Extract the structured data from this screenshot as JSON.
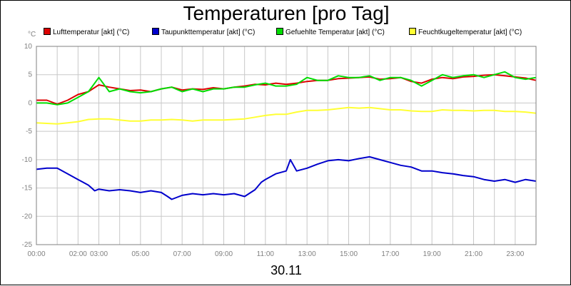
{
  "chart_data": {
    "type": "line",
    "title": "Temperaturen [pro Tag]",
    "y_unit": "°C",
    "date_label": "30.11",
    "xlim": [
      0,
      24
    ],
    "ylim": [
      -25,
      10
    ],
    "y_ticks": [
      10,
      5,
      0,
      -5,
      -10,
      -15,
      -20,
      -25
    ],
    "x_tick_labels": [
      {
        "hour": 0,
        "label": "00:00"
      },
      {
        "hour": 2,
        "label": "02:00"
      },
      {
        "hour": 3,
        "label": "03:00"
      },
      {
        "hour": 5,
        "label": "05:00"
      },
      {
        "hour": 7,
        "label": "07:00"
      },
      {
        "hour": 9,
        "label": "09:00"
      },
      {
        "hour": 11,
        "label": "11:00"
      },
      {
        "hour": 13,
        "label": "13:00"
      },
      {
        "hour": 15,
        "label": "15:00"
      },
      {
        "hour": 17,
        "label": "17:00"
      },
      {
        "hour": 19,
        "label": "19:00"
      },
      {
        "hour": 21,
        "label": "21:00"
      },
      {
        "hour": 23,
        "label": "23:00"
      }
    ],
    "grid": true,
    "legend_position": "top",
    "series": [
      {
        "name": "Lufttemperatur [akt] (°C)",
        "color": "#dd0000",
        "points": [
          [
            0,
            0.5
          ],
          [
            0.5,
            0.5
          ],
          [
            1,
            -0.2
          ],
          [
            1.5,
            0.5
          ],
          [
            2,
            1.5
          ],
          [
            2.5,
            2.0
          ],
          [
            3,
            3.2
          ],
          [
            3.5,
            2.8
          ],
          [
            4,
            2.5
          ],
          [
            4.5,
            2.2
          ],
          [
            5,
            2.3
          ],
          [
            5.5,
            2.0
          ],
          [
            6,
            2.5
          ],
          [
            6.5,
            2.8
          ],
          [
            7,
            2.3
          ],
          [
            7.5,
            2.5
          ],
          [
            8,
            2.4
          ],
          [
            8.5,
            2.7
          ],
          [
            9,
            2.5
          ],
          [
            9.5,
            2.8
          ],
          [
            10,
            3.0
          ],
          [
            10.5,
            3.3
          ],
          [
            11,
            3.2
          ],
          [
            11.5,
            3.5
          ],
          [
            12,
            3.3
          ],
          [
            12.5,
            3.5
          ],
          [
            13,
            3.8
          ],
          [
            13.5,
            4.0
          ],
          [
            14,
            4.0
          ],
          [
            14.5,
            4.3
          ],
          [
            15,
            4.4
          ],
          [
            15.5,
            4.5
          ],
          [
            16,
            4.6
          ],
          [
            16.5,
            4.2
          ],
          [
            17,
            4.3
          ],
          [
            17.5,
            4.5
          ],
          [
            18,
            3.8
          ],
          [
            18.5,
            3.5
          ],
          [
            19,
            4.2
          ],
          [
            19.5,
            4.5
          ],
          [
            20,
            4.3
          ],
          [
            20.5,
            4.6
          ],
          [
            21,
            4.7
          ],
          [
            21.5,
            4.9
          ],
          [
            22,
            5.0
          ],
          [
            22.5,
            4.8
          ],
          [
            23,
            4.6
          ],
          [
            23.5,
            4.4
          ],
          [
            24,
            4.0
          ]
        ]
      },
      {
        "name": "Taupunkttemperatur [akt] (°C)",
        "color": "#0000cc",
        "points": [
          [
            0,
            -11.7
          ],
          [
            0.5,
            -11.5
          ],
          [
            1,
            -11.5
          ],
          [
            1.5,
            -12.5
          ],
          [
            2,
            -13.5
          ],
          [
            2.5,
            -14.5
          ],
          [
            2.8,
            -15.5
          ],
          [
            3,
            -15.2
          ],
          [
            3.5,
            -15.5
          ],
          [
            4,
            -15.3
          ],
          [
            4.5,
            -15.5
          ],
          [
            5,
            -15.8
          ],
          [
            5.5,
            -15.5
          ],
          [
            6,
            -15.8
          ],
          [
            6.3,
            -16.5
          ],
          [
            6.5,
            -17.0
          ],
          [
            7,
            -16.3
          ],
          [
            7.5,
            -16.0
          ],
          [
            8,
            -16.2
          ],
          [
            8.5,
            -16.0
          ],
          [
            9,
            -16.2
          ],
          [
            9.5,
            -16.0
          ],
          [
            10,
            -16.5
          ],
          [
            10.5,
            -15.3
          ],
          [
            10.8,
            -14.0
          ],
          [
            11,
            -13.5
          ],
          [
            11.5,
            -12.5
          ],
          [
            12,
            -12.0
          ],
          [
            12.2,
            -10.0
          ],
          [
            12.5,
            -12.0
          ],
          [
            13,
            -11.5
          ],
          [
            13.5,
            -10.8
          ],
          [
            14,
            -10.2
          ],
          [
            14.5,
            -10.0
          ],
          [
            15,
            -10.2
          ],
          [
            15.5,
            -9.8
          ],
          [
            16,
            -9.5
          ],
          [
            16.5,
            -10.0
          ],
          [
            17,
            -10.5
          ],
          [
            17.5,
            -11.0
          ],
          [
            18,
            -11.3
          ],
          [
            18.5,
            -12.0
          ],
          [
            19,
            -12.0
          ],
          [
            19.5,
            -12.3
          ],
          [
            20,
            -12.5
          ],
          [
            20.5,
            -12.8
          ],
          [
            21,
            -13.0
          ],
          [
            21.5,
            -13.5
          ],
          [
            22,
            -13.8
          ],
          [
            22.5,
            -13.5
          ],
          [
            23,
            -14.0
          ],
          [
            23.5,
            -13.5
          ],
          [
            24,
            -13.8
          ]
        ]
      },
      {
        "name": "Gefuehlte Temperatur [akt] (°C)",
        "color": "#00dd00",
        "points": [
          [
            0,
            0.0
          ],
          [
            0.5,
            0.0
          ],
          [
            1,
            -0.3
          ],
          [
            1.5,
            0.0
          ],
          [
            2,
            1.0
          ],
          [
            2.5,
            2.0
          ],
          [
            3,
            4.5
          ],
          [
            3.5,
            2.0
          ],
          [
            4,
            2.5
          ],
          [
            4.5,
            2.0
          ],
          [
            5,
            1.8
          ],
          [
            5.5,
            2.0
          ],
          [
            6,
            2.5
          ],
          [
            6.5,
            2.8
          ],
          [
            7,
            2.0
          ],
          [
            7.5,
            2.5
          ],
          [
            8,
            2.0
          ],
          [
            8.5,
            2.5
          ],
          [
            9,
            2.5
          ],
          [
            9.5,
            2.8
          ],
          [
            10,
            2.8
          ],
          [
            10.5,
            3.2
          ],
          [
            11,
            3.5
          ],
          [
            11.5,
            3.0
          ],
          [
            12,
            3.0
          ],
          [
            12.5,
            3.3
          ],
          [
            13,
            4.5
          ],
          [
            13.5,
            4.0
          ],
          [
            14,
            4.0
          ],
          [
            14.5,
            4.8
          ],
          [
            15,
            4.5
          ],
          [
            15.5,
            4.5
          ],
          [
            16,
            4.8
          ],
          [
            16.5,
            4.0
          ],
          [
            17,
            4.5
          ],
          [
            17.5,
            4.5
          ],
          [
            18,
            4.0
          ],
          [
            18.5,
            3.0
          ],
          [
            19,
            4.0
          ],
          [
            19.5,
            5.0
          ],
          [
            20,
            4.5
          ],
          [
            20.5,
            4.8
          ],
          [
            21,
            5.0
          ],
          [
            21.5,
            4.5
          ],
          [
            22,
            5.0
          ],
          [
            22.5,
            5.5
          ],
          [
            23,
            4.5
          ],
          [
            23.5,
            4.2
          ],
          [
            24,
            4.5
          ]
        ]
      },
      {
        "name": "Feuchtkugeltemperatur [akt] (°C)",
        "color": "#ffff33",
        "points": [
          [
            0,
            -3.5
          ],
          [
            0.5,
            -3.6
          ],
          [
            1,
            -3.7
          ],
          [
            1.5,
            -3.5
          ],
          [
            2,
            -3.3
          ],
          [
            2.5,
            -2.9
          ],
          [
            3,
            -2.8
          ],
          [
            3.5,
            -2.8
          ],
          [
            4,
            -3.0
          ],
          [
            4.5,
            -3.2
          ],
          [
            5,
            -3.2
          ],
          [
            5.5,
            -3.0
          ],
          [
            6,
            -3.0
          ],
          [
            6.5,
            -2.9
          ],
          [
            7,
            -3.0
          ],
          [
            7.5,
            -3.2
          ],
          [
            8,
            -3.0
          ],
          [
            8.5,
            -3.0
          ],
          [
            9,
            -3.0
          ],
          [
            9.5,
            -2.9
          ],
          [
            10,
            -2.8
          ],
          [
            10.5,
            -2.5
          ],
          [
            11,
            -2.2
          ],
          [
            11.5,
            -2.0
          ],
          [
            12,
            -2.0
          ],
          [
            12.5,
            -1.6
          ],
          [
            13,
            -1.3
          ],
          [
            13.5,
            -1.3
          ],
          [
            14,
            -1.2
          ],
          [
            14.5,
            -1.0
          ],
          [
            15,
            -0.8
          ],
          [
            15.5,
            -0.9
          ],
          [
            16,
            -0.8
          ],
          [
            16.5,
            -1.0
          ],
          [
            17,
            -1.2
          ],
          [
            17.5,
            -1.2
          ],
          [
            18,
            -1.4
          ],
          [
            18.5,
            -1.5
          ],
          [
            19,
            -1.5
          ],
          [
            19.5,
            -1.2
          ],
          [
            20,
            -1.3
          ],
          [
            20.5,
            -1.3
          ],
          [
            21,
            -1.4
          ],
          [
            21.5,
            -1.3
          ],
          [
            22,
            -1.3
          ],
          [
            22.5,
            -1.5
          ],
          [
            23,
            -1.5
          ],
          [
            23.5,
            -1.6
          ],
          [
            24,
            -1.8
          ]
        ]
      }
    ]
  }
}
